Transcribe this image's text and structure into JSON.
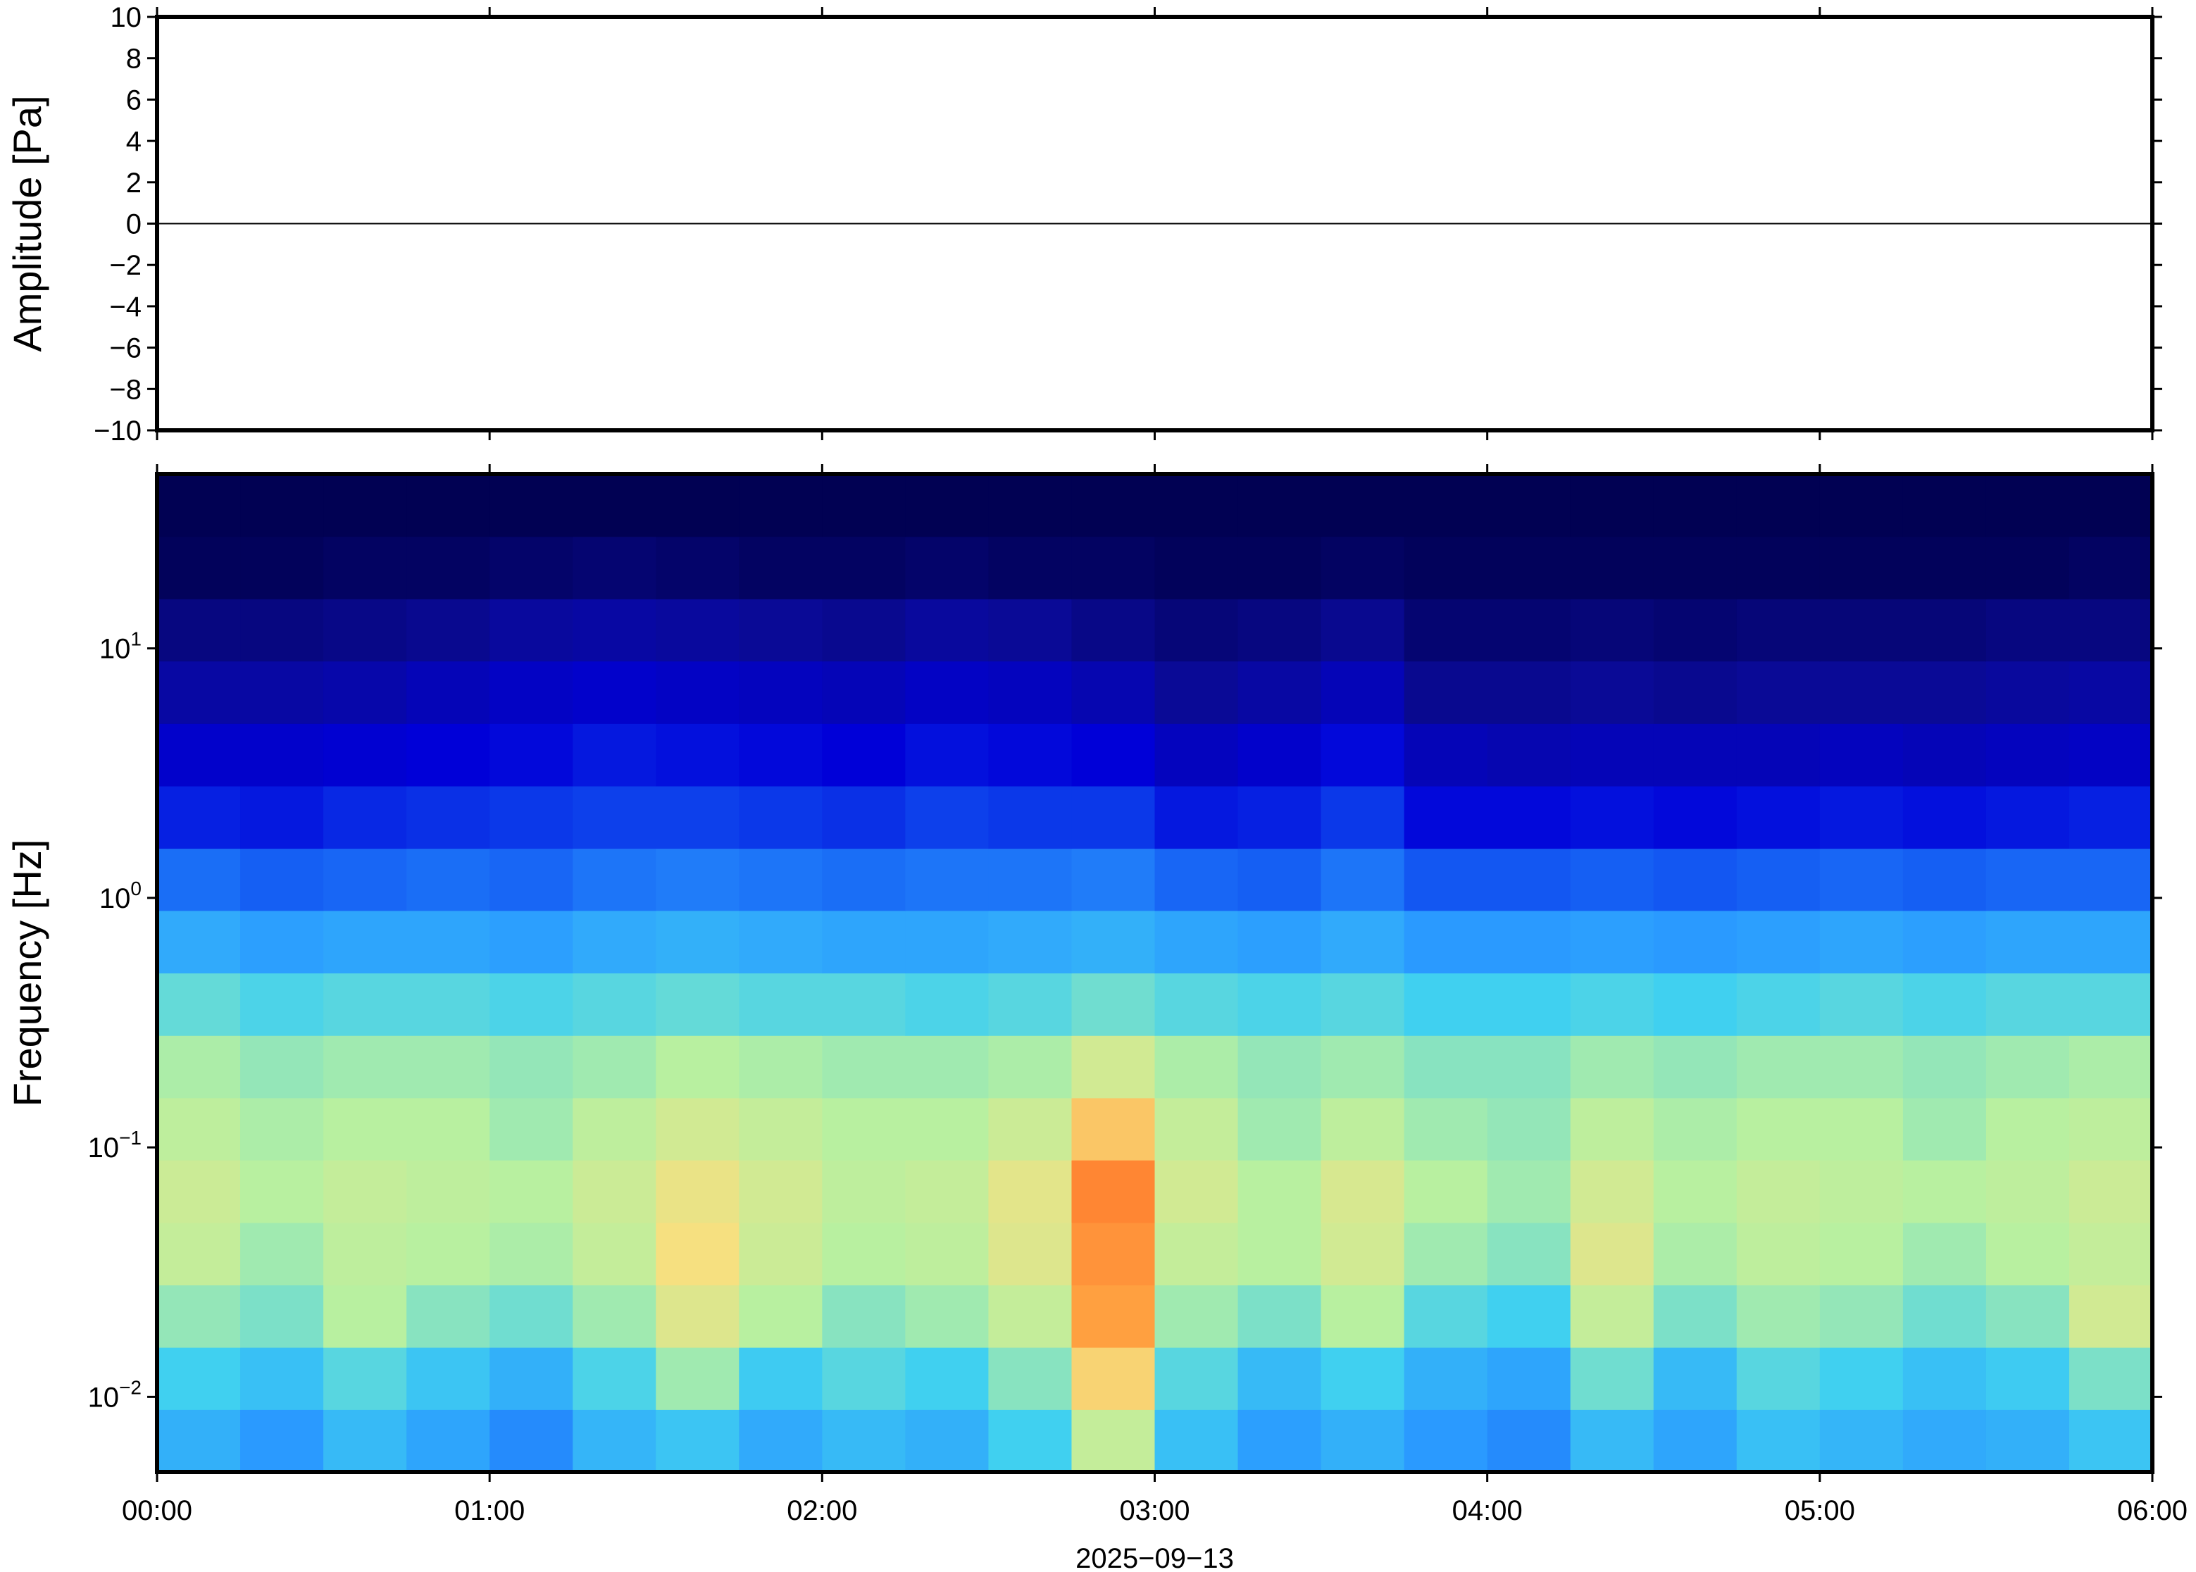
{
  "chart_data": [
    {
      "type": "line",
      "ylabel": "Amplitude [Pa]",
      "color": "#000000",
      "x": [
        0,
        10,
        20,
        30,
        40,
        50,
        60,
        70,
        80,
        90,
        100,
        110,
        120,
        130,
        140,
        150,
        160,
        170,
        180,
        190,
        200,
        210,
        220,
        230,
        240,
        250,
        260,
        270,
        280,
        290,
        300,
        310,
        320,
        330,
        340,
        350,
        360
      ],
      "values": [
        0,
        0,
        0,
        0,
        0,
        0,
        0,
        0,
        0,
        0,
        0,
        0,
        0,
        0,
        0,
        0,
        0,
        0,
        0,
        0,
        0,
        0,
        0,
        0,
        0,
        0,
        0,
        0,
        0,
        0,
        0,
        0,
        0,
        0,
        0,
        0,
        0
      ],
      "xlim": [
        0,
        360
      ],
      "xticks": [
        0,
        60,
        120,
        180,
        240,
        300,
        360
      ],
      "ylim": [
        -10,
        10
      ],
      "yticks": [
        {
          "value": -10,
          "label": "−10"
        },
        {
          "value": -8,
          "label": "−8"
        },
        {
          "value": -6,
          "label": "−6"
        },
        {
          "value": -4,
          "label": "−4"
        },
        {
          "value": -2,
          "label": "−2"
        },
        0,
        2,
        4,
        6,
        8,
        10
      ]
    },
    {
      "type": "heatmap",
      "ylabel": "Frequency [Hz]",
      "xlabel": "2025−09−13",
      "log_y": true,
      "xlim": [
        0,
        360
      ],
      "xticks": [
        {
          "value": 0,
          "label": "00:00"
        },
        {
          "value": 60,
          "label": "01:00"
        },
        {
          "value": 120,
          "label": "02:00"
        },
        {
          "value": 180,
          "label": "03:00"
        },
        {
          "value": 240,
          "label": "04:00"
        },
        {
          "value": 300,
          "label": "05:00"
        },
        {
          "value": 360,
          "label": "06:00"
        }
      ],
      "ylim": [
        0.005,
        50
      ],
      "yticks": [
        {
          "value": 0.01,
          "label": "10",
          "exponent": "−2"
        },
        {
          "value": 0.1,
          "label": "10",
          "exponent": "−1"
        },
        {
          "value": 1,
          "label": "10",
          "exponent": "0"
        },
        {
          "value": 10,
          "label": "10",
          "exponent": "1"
        }
      ],
      "xbins": [
        0,
        15,
        30,
        45,
        60,
        75,
        90,
        105,
        120,
        135,
        150,
        165,
        180,
        195,
        210,
        225,
        240,
        255,
        270,
        285,
        300,
        315,
        330,
        345,
        360
      ],
      "ybins": [
        0.005,
        0.0089,
        0.0158,
        0.0281,
        0.05,
        0.089,
        0.158,
        0.281,
        0.5,
        0.89,
        1.58,
        2.81,
        5,
        8.9,
        15.8,
        28.1,
        50
      ],
      "zlim": [
        0,
        100
      ],
      "colorscale": [
        "#00004c",
        "#0a0a96",
        "#0000d8",
        "#1050f0",
        "#2a9aff",
        "#40d0f0",
        "#b8f0a0",
        "#f6e080",
        "#ffa040",
        "#ff6020",
        "#e02010"
      ],
      "z": [
        [
          44,
          40,
          46,
          42,
          38,
          45,
          48,
          43,
          46,
          44,
          50,
          62,
          47,
          41,
          44,
          40,
          38,
          46,
          42,
          47,
          45,
          43,
          44,
          48
        ],
        [
          50,
          47,
          52,
          48,
          44,
          51,
          58,
          49,
          52,
          50,
          56,
          72,
          52,
          46,
          50,
          44,
          42,
          54,
          46,
          52,
          50,
          47,
          49,
          55
        ],
        [
          57,
          55,
          60,
          56,
          54,
          58,
          66,
          60,
          56,
          58,
          62,
          80,
          58,
          55,
          60,
          52,
          50,
          62,
          55,
          58,
          57,
          54,
          56,
          64
        ],
        [
          62,
          58,
          61,
          60,
          59,
          62,
          70,
          63,
          60,
          61,
          66,
          82,
          62,
          60,
          64,
          58,
          56,
          66,
          59,
          61,
          60,
          58,
          60,
          62
        ],
        [
          63,
          60,
          62,
          61,
          60,
          63,
          68,
          64,
          61,
          62,
          67,
          84,
          64,
          60,
          65,
          60,
          58,
          64,
          60,
          62,
          61,
          60,
          61,
          63
        ],
        [
          61,
          59,
          60,
          60,
          58,
          61,
          64,
          62,
          60,
          60,
          63,
          74,
          62,
          58,
          61,
          58,
          57,
          61,
          59,
          60,
          60,
          58,
          60,
          61
        ],
        [
          59,
          57,
          58,
          58,
          57,
          58,
          60,
          59,
          58,
          58,
          59,
          64,
          59,
          57,
          58,
          56,
          56,
          58,
          57,
          58,
          58,
          57,
          58,
          59
        ],
        [
          53,
          51,
          52,
          52,
          51,
          52,
          53,
          52,
          52,
          51,
          52,
          54,
          52,
          51,
          52,
          50,
          50,
          51,
          50,
          51,
          52,
          51,
          52,
          52
        ],
        [
          43,
          41,
          42,
          42,
          41,
          43,
          44,
          43,
          42,
          42,
          43,
          44,
          42,
          41,
          43,
          40,
          40,
          41,
          40,
          41,
          42,
          41,
          42,
          42
        ],
        [
          34,
          32,
          33,
          34,
          33,
          35,
          36,
          35,
          34,
          35,
          35,
          36,
          33,
          32,
          35,
          31,
          31,
          32,
          31,
          32,
          33,
          32,
          33,
          33
        ],
        [
          24,
          23,
          25,
          26,
          27,
          28,
          28,
          27,
          26,
          28,
          27,
          27,
          23,
          24,
          27,
          21,
          21,
          22,
          21,
          22,
          23,
          22,
          23,
          24
        ],
        [
          18,
          18,
          19,
          20,
          21,
          23,
          22,
          21,
          20,
          22,
          21,
          20,
          16,
          18,
          21,
          15,
          14,
          15,
          15,
          15,
          16,
          15,
          16,
          17
        ],
        [
          12,
          12,
          13,
          15,
          17,
          18,
          17,
          16,
          15,
          17,
          16,
          14,
          10,
          12,
          15,
          9,
          9,
          10,
          9,
          10,
          10,
          10,
          11,
          12
        ],
        [
          7,
          7,
          8,
          9,
          11,
          12,
          11,
          10,
          9,
          11,
          10,
          8,
          6,
          7,
          9,
          5,
          5,
          6,
          5,
          6,
          6,
          6,
          7,
          7
        ],
        [
          2,
          2,
          3,
          3,
          4,
          5,
          4,
          3,
          3,
          4,
          3,
          3,
          2,
          2,
          3,
          2,
          2,
          2,
          2,
          2,
          2,
          2,
          2,
          3
        ],
        [
          1,
          1,
          1,
          1,
          1,
          1,
          1,
          1,
          1,
          1,
          1,
          1,
          1,
          1,
          1,
          1,
          1,
          1,
          1,
          1,
          1,
          1,
          1,
          1
        ]
      ]
    }
  ]
}
